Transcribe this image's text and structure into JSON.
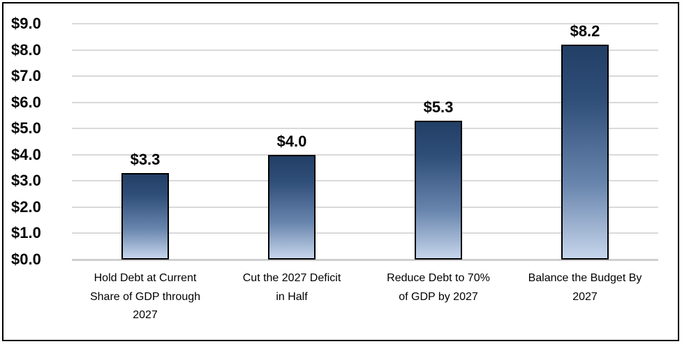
{
  "chart_data": {
    "type": "bar",
    "title": "",
    "categories": [
      "Hold Debt at Current Share of GDP through 2027",
      "Cut the 2027 Deficit in Half",
      "Reduce Debt to 70% of GDP by 2027",
      "Balance the Budget By 2027"
    ],
    "category_lines": [
      [
        "Hold Debt at Current",
        "Share of GDP through",
        "2027"
      ],
      [
        "Cut the 2027 Deficit",
        "in Half"
      ],
      [
        "Reduce Debt to 70%",
        "of GDP by 2027"
      ],
      [
        "Balance the Budget By",
        "2027"
      ]
    ],
    "values": [
      3.3,
      4.0,
      5.3,
      8.2
    ],
    "data_labels": [
      "$3.3",
      "$4.0",
      "$5.3",
      "$8.2"
    ],
    "y_ticks": [
      {
        "value": 0,
        "label": "$0.0"
      },
      {
        "value": 1,
        "label": "$1.0"
      },
      {
        "value": 2,
        "label": "$2.0"
      },
      {
        "value": 3,
        "label": "$3.0"
      },
      {
        "value": 4,
        "label": "$4.0"
      },
      {
        "value": 5,
        "label": "$5.0"
      },
      {
        "value": 6,
        "label": "$6.0"
      },
      {
        "value": 7,
        "label": "$7.0"
      },
      {
        "value": 8,
        "label": "$8.0"
      },
      {
        "value": 9,
        "label": "$9.0"
      }
    ],
    "xlabel": "",
    "ylabel": "",
    "ylim": [
      0,
      9
    ],
    "grid": true,
    "legend": false,
    "colors": {
      "bar_gradient_top": "#223F66",
      "bar_gradient_upper_mid": "#2F4E78",
      "bar_gradient_lower_mid": "#6885AD",
      "bar_gradient_bottom": "#C6D5EB",
      "bar_border": "#000000",
      "gridline": "#D9D9D9",
      "baseline": "#CFCFCF",
      "text": "#000000",
      "frame_border": "#000000",
      "background": "#FFFFFF"
    }
  }
}
